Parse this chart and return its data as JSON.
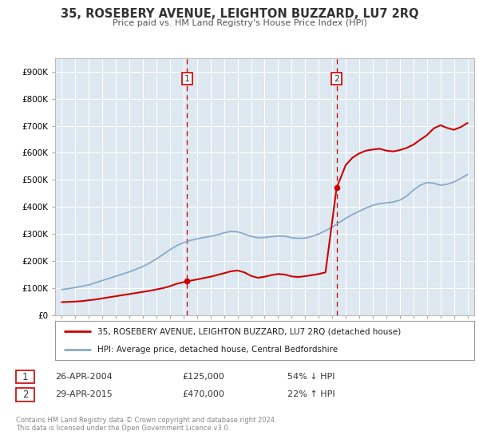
{
  "title": "35, ROSEBERY AVENUE, LEIGHTON BUZZARD, LU7 2RQ",
  "subtitle": "Price paid vs. HM Land Registry's House Price Index (HPI)",
  "fig_bg_color": "#ffffff",
  "plot_bg_color": "#dde8f0",
  "hpi_years": [
    1995,
    1995.5,
    1996,
    1996.5,
    1997,
    1997.5,
    1998,
    1998.5,
    1999,
    1999.5,
    2000,
    2000.5,
    2001,
    2001.5,
    2002,
    2002.5,
    2003,
    2003.5,
    2004,
    2004.5,
    2005,
    2005.5,
    2006,
    2006.5,
    2007,
    2007.5,
    2008,
    2008.5,
    2009,
    2009.5,
    2010,
    2010.5,
    2011,
    2011.5,
    2012,
    2012.5,
    2013,
    2013.5,
    2014,
    2014.5,
    2015,
    2015.5,
    2016,
    2016.5,
    2017,
    2017.5,
    2018,
    2018.5,
    2019,
    2019.5,
    2020,
    2020.5,
    2021,
    2021.5,
    2022,
    2022.5,
    2023,
    2023.5,
    2024,
    2024.5,
    2025
  ],
  "hpi_values": [
    95000,
    98000,
    102000,
    107000,
    112000,
    120000,
    128000,
    136000,
    144000,
    152000,
    160000,
    170000,
    180000,
    193000,
    208000,
    225000,
    242000,
    257000,
    268000,
    276000,
    282000,
    287000,
    291000,
    297000,
    304000,
    310000,
    308000,
    300000,
    291000,
    286000,
    287000,
    290000,
    292000,
    292000,
    286000,
    284000,
    285000,
    291000,
    300000,
    312000,
    325000,
    342000,
    358000,
    372000,
    384000,
    396000,
    406000,
    412000,
    415000,
    418000,
    425000,
    440000,
    462000,
    480000,
    490000,
    488000,
    480000,
    484000,
    492000,
    505000,
    520000
  ],
  "price_years_seg1": [
    1995,
    1995.5,
    1996,
    1996.5,
    1997,
    1997.5,
    1998,
    1998.5,
    1999,
    1999.5,
    2000,
    2000.5,
    2001,
    2001.5,
    2002,
    2002.5,
    2003,
    2003.5,
    2004.27
  ],
  "price_values_seg1": [
    48000,
    49000,
    50000,
    52000,
    55000,
    58000,
    62000,
    66000,
    70000,
    74000,
    78000,
    82000,
    86000,
    90000,
    95000,
    100000,
    107000,
    116000,
    125000
  ],
  "price_years_seg2": [
    2004.27,
    2005,
    2006,
    2007,
    2007.5,
    2008,
    2008.5,
    2009,
    2009.5,
    2010,
    2010.5,
    2011,
    2011.5,
    2012,
    2012.5,
    2013,
    2013.5,
    2014,
    2014.5,
    2015.32
  ],
  "price_values_seg2": [
    125000,
    132000,
    142000,
    155000,
    162000,
    165000,
    158000,
    145000,
    138000,
    142000,
    148000,
    152000,
    150000,
    143000,
    141000,
    144000,
    148000,
    152000,
    158000,
    470000
  ],
  "price_years_seg3": [
    2015.32,
    2016,
    2016.5,
    2017,
    2017.5,
    2018,
    2018.5,
    2019,
    2019.5,
    2020,
    2020.5,
    2021,
    2021.5,
    2022,
    2022.5,
    2023,
    2023.5,
    2024,
    2024.5,
    2025
  ],
  "price_values_seg3": [
    470000,
    555000,
    582000,
    598000,
    608000,
    612000,
    615000,
    608000,
    605000,
    610000,
    618000,
    630000,
    648000,
    665000,
    690000,
    702000,
    692000,
    685000,
    695000,
    710000
  ],
  "sale1_year": 2004.27,
  "sale1_value": 125000,
  "sale1_date": "26-APR-2004",
  "sale1_price": "£125,000",
  "sale1_hpi": "54% ↓ HPI",
  "sale2_year": 2015.32,
  "sale2_value": 470000,
  "sale2_date": "29-APR-2015",
  "sale2_price": "£470,000",
  "sale2_hpi": "22% ↑ HPI",
  "vline1_year": 2004.27,
  "vline2_year": 2015.32,
  "legend_label_red": "35, ROSEBERY AVENUE, LEIGHTON BUZZARD, LU7 2RQ (detached house)",
  "legend_label_blue": "HPI: Average price, detached house, Central Bedfordshire",
  "footer": "Contains HM Land Registry data © Crown copyright and database right 2024.\nThis data is licensed under the Open Government Licence v3.0.",
  "xlim": [
    1994.5,
    2025.5
  ],
  "ylim": [
    0,
    950000
  ],
  "yticks": [
    0,
    100000,
    200000,
    300000,
    400000,
    500000,
    600000,
    700000,
    800000,
    900000
  ],
  "xticks": [
    1995,
    1996,
    1997,
    1998,
    1999,
    2000,
    2001,
    2002,
    2003,
    2004,
    2005,
    2006,
    2007,
    2008,
    2009,
    2010,
    2011,
    2012,
    2013,
    2014,
    2015,
    2016,
    2017,
    2018,
    2019,
    2020,
    2021,
    2022,
    2023,
    2024,
    2025
  ],
  "red_color": "#cc0000",
  "blue_color": "#88aacc",
  "vline_color": "#cc0000",
  "grid_color": "#ffffff"
}
